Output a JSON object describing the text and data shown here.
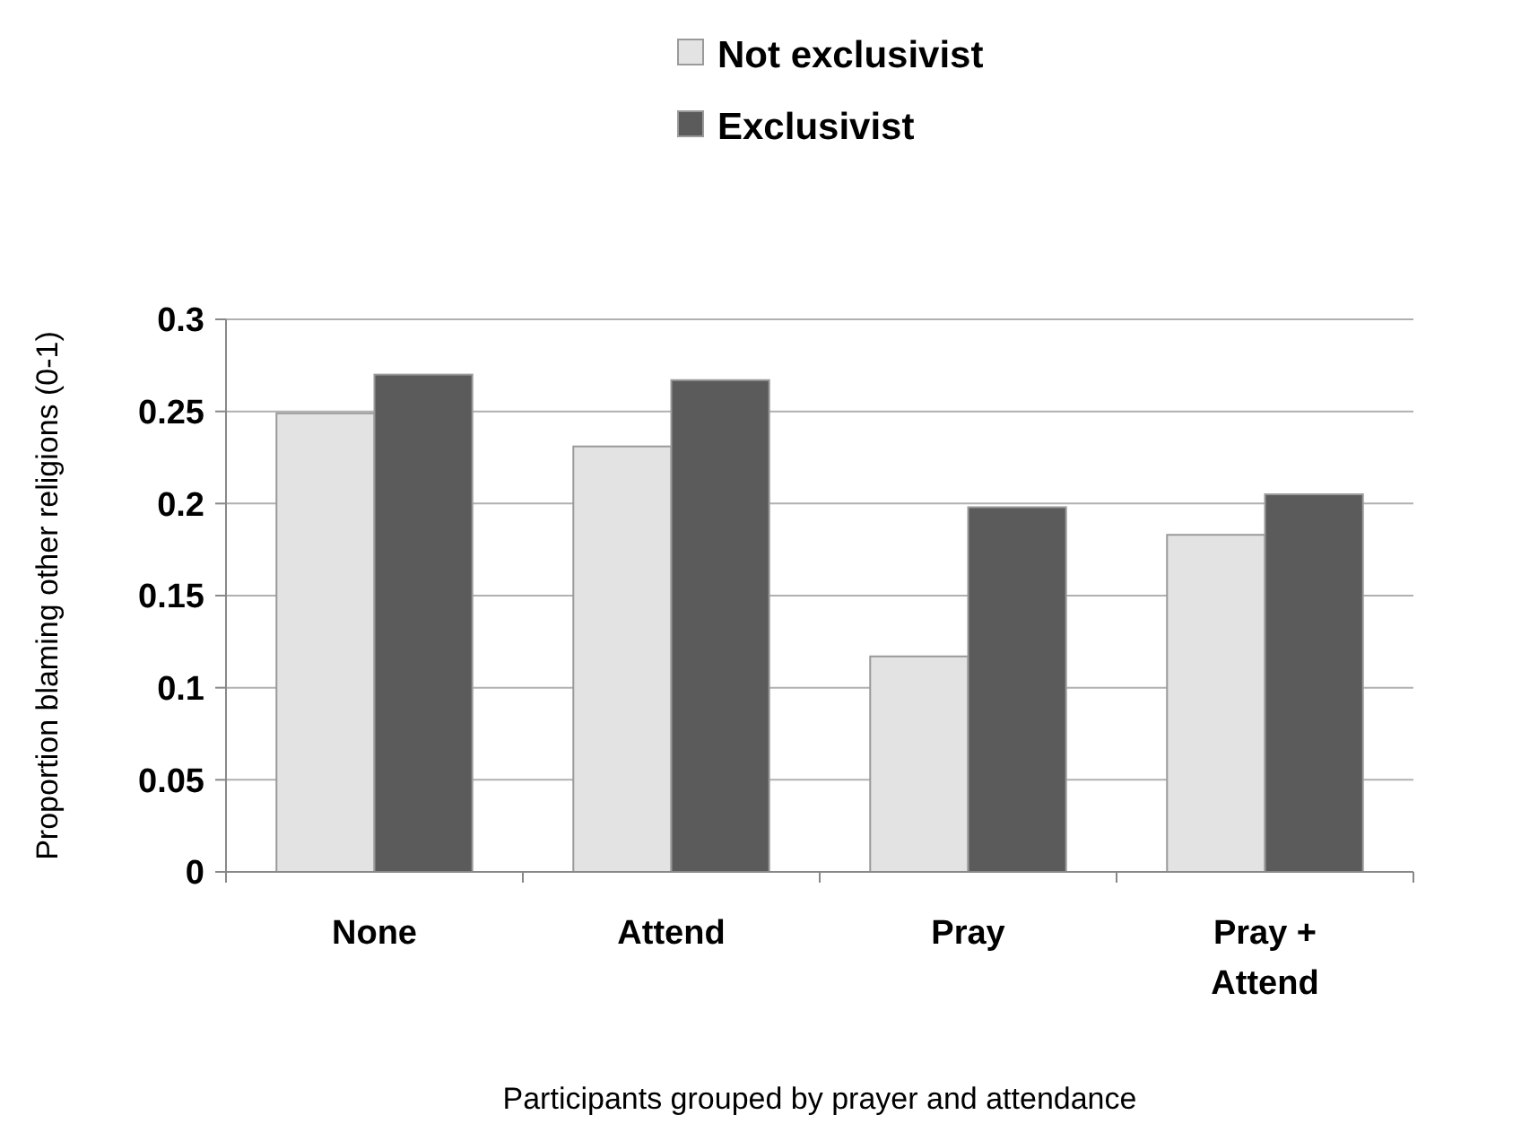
{
  "chart_data": {
    "type": "bar",
    "xlabel": "Participants grouped by prayer and attendance",
    "ylabel": "Proportion blaming other religions (0-1)",
    "categories": [
      "None",
      "Attend",
      "Pray",
      "Pray + Attend"
    ],
    "series": [
      {
        "name": "Not exclusivist",
        "color": "#e3e3e3",
        "values": [
          0.249,
          0.231,
          0.117,
          0.183
        ]
      },
      {
        "name": "Exclusivist",
        "color": "#5b5b5b",
        "values": [
          0.27,
          0.267,
          0.198,
          0.205
        ]
      }
    ],
    "ylim": [
      0,
      0.3
    ],
    "yticks": [
      0,
      0.05,
      0.1,
      0.15,
      0.2,
      0.25,
      0.3
    ],
    "grid": "y",
    "legend": "top"
  }
}
